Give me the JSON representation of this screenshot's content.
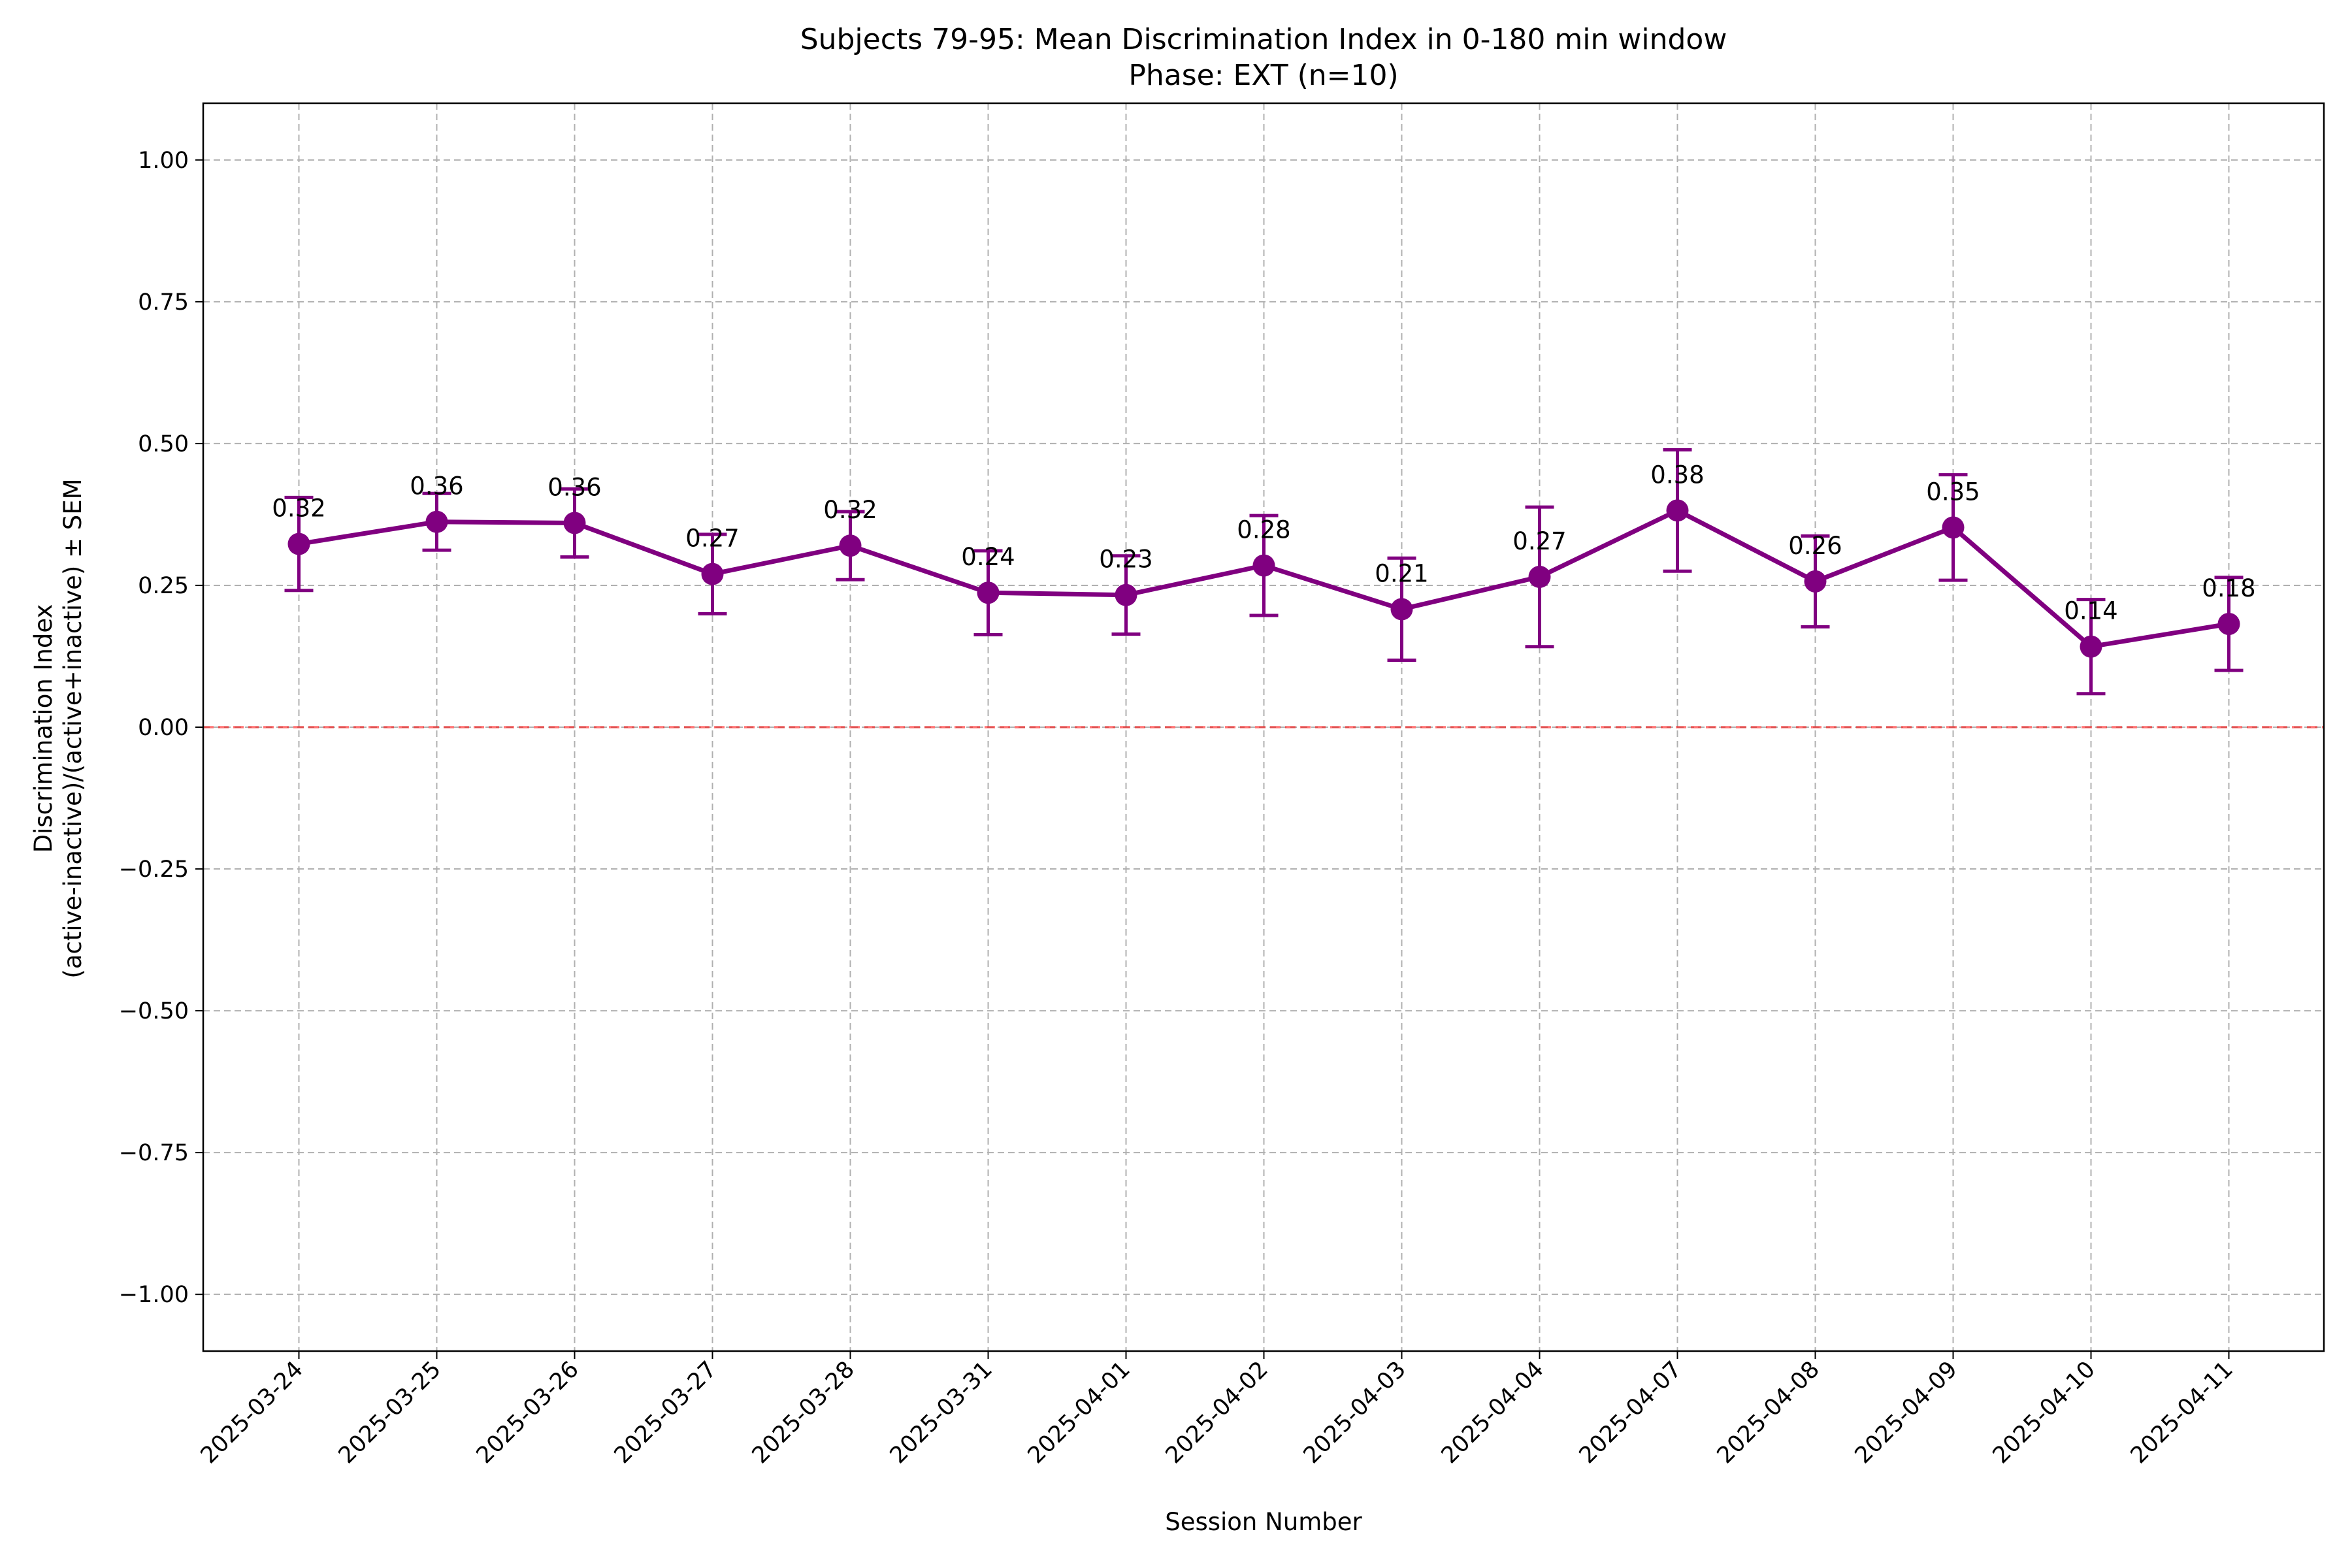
{
  "chart_data": {
    "type": "line",
    "title": "Subjects 79-95: Mean Discrimination Index in 0-180 min window",
    "subtitle": "Phase: EXT (n=10)",
    "xlabel": "Session Number",
    "ylabel": [
      "Discrimination Index",
      "(active-inactive)/(active+inactive) ± SEM"
    ],
    "ylim": [
      -1.1,
      1.1
    ],
    "yticks": [
      -1.0,
      -0.75,
      -0.5,
      -0.25,
      0.0,
      0.25,
      0.5,
      0.75,
      1.0
    ],
    "ytick_labels": [
      "−1.00",
      "−0.75",
      "−0.50",
      "−0.25",
      "0.00",
      "0.25",
      "0.50",
      "0.75",
      "1.00"
    ],
    "grid": true,
    "reference_line": {
      "y": 0.0,
      "color": "#ff0000",
      "style": "dashed"
    },
    "categories": [
      "2025-03-24",
      "2025-03-25",
      "2025-03-26",
      "2025-03-27",
      "2025-03-28",
      "2025-03-31",
      "2025-04-01",
      "2025-04-02",
      "2025-04-03",
      "2025-04-04",
      "2025-04-07",
      "2025-04-08",
      "2025-04-09",
      "2025-04-10",
      "2025-04-11"
    ],
    "series": [
      {
        "color": "#800080",
        "values": [
          0.323,
          0.362,
          0.36,
          0.27,
          0.32,
          0.237,
          0.233,
          0.285,
          0.208,
          0.265,
          0.382,
          0.257,
          0.352,
          0.142,
          0.182
        ],
        "sem": [
          0.082,
          0.05,
          0.06,
          0.07,
          0.06,
          0.074,
          0.069,
          0.088,
          0.09,
          0.123,
          0.107,
          0.08,
          0.093,
          0.083,
          0.082
        ],
        "labels": [
          "0.32",
          "0.36",
          "0.36",
          "0.27",
          "0.32",
          "0.24",
          "0.23",
          "0.28",
          "0.21",
          "0.27",
          "0.38",
          "0.26",
          "0.35",
          "0.14",
          "0.18"
        ]
      }
    ]
  }
}
